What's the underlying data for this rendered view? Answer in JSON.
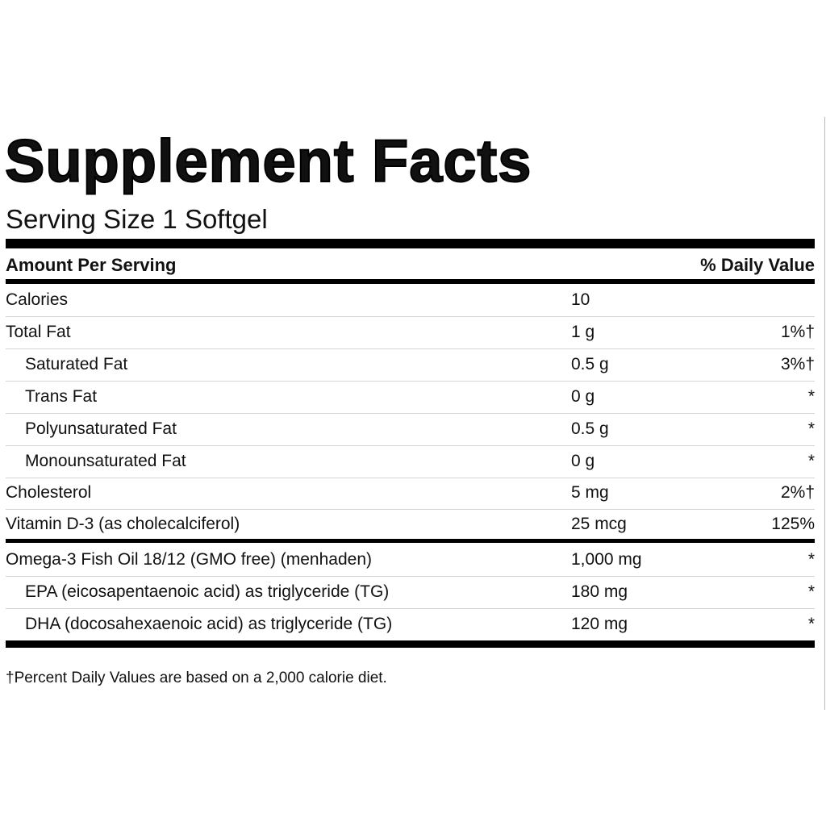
{
  "header": {
    "title": "Supplement Facts",
    "serving_size": "Serving Size 1 Softgel"
  },
  "table": {
    "columns": [
      "Amount Per Serving",
      "% Daily Value"
    ],
    "rows": [
      [
        "Calories",
        "10",
        ""
      ],
      [
        "Total Fat",
        "1 g",
        "1%†"
      ],
      [
        "Saturated Fat",
        "0.5 g",
        "3%†"
      ],
      [
        "Trans Fat",
        "0 g",
        "*"
      ],
      [
        "Polyunsaturated Fat",
        "0.5 g",
        "*"
      ],
      [
        "Monounsaturated Fat",
        "0 g",
        "*"
      ],
      [
        "Cholesterol",
        "5 mg",
        "2%†"
      ],
      [
        "Vitamin D-3 (as cholecalciferol)",
        "25 mcg",
        "125%"
      ],
      [
        "Omega-3 Fish Oil 18/12 (GMO free) (menhaden)",
        "1,000 mg",
        "*"
      ],
      [
        "EPA (eicosapentaenoic acid) as triglyceride (TG)",
        "180 mg",
        "*"
      ],
      [
        "DHA (docosahexaenoic acid) as triglyceride (TG)",
        "120 mg",
        "*"
      ]
    ]
  },
  "footnote": "†Percent Daily Values are based on a 2,000 calorie diet."
}
